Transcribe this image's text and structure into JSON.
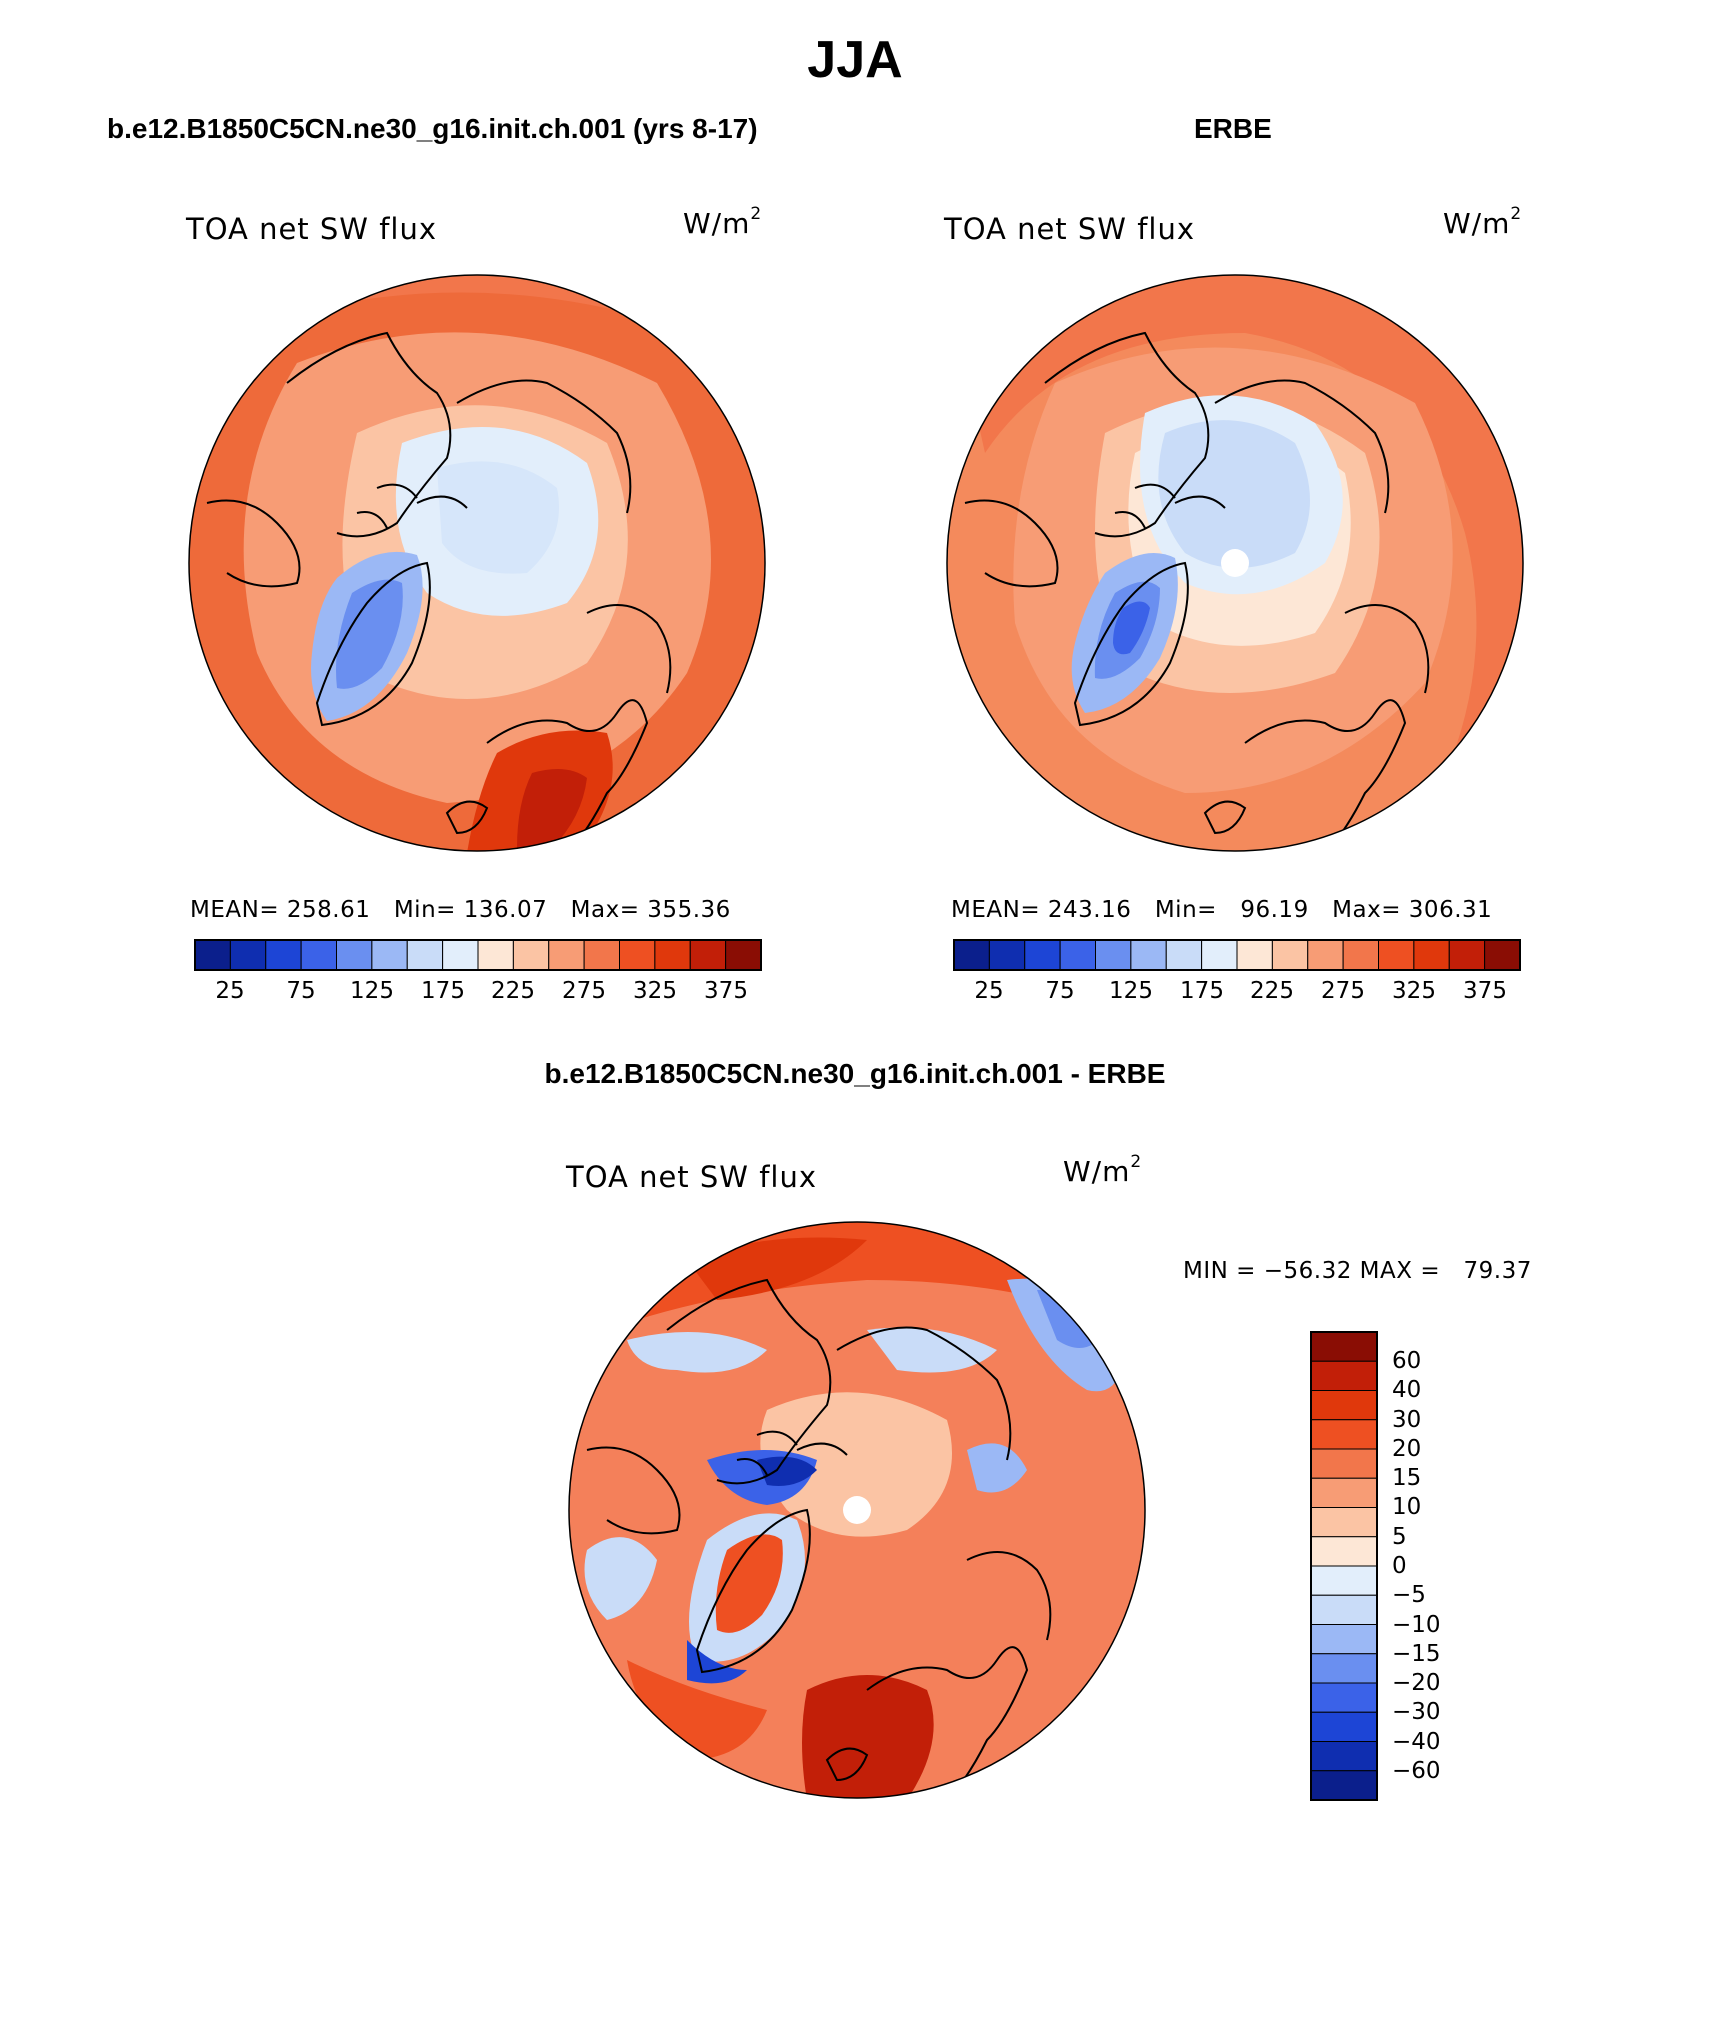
{
  "figure": {
    "season_title": "JJA",
    "panels": [
      {
        "heading": "b.e12.B1850C5CN.ne30_g16.init.ch.001 (yrs 8-17)",
        "variable": "TOA net SW flux",
        "units_base": "W/m",
        "units_exp": "2",
        "stats": {
          "mean": "258.61",
          "min": "136.07",
          "max": "355.36"
        },
        "stats_labels": {
          "mean": "MEAN=",
          "min": "Min=",
          "max": "Max="
        }
      },
      {
        "heading": "ERBE",
        "variable": "TOA net SW flux",
        "units_base": "W/m",
        "units_exp": "2",
        "stats": {
          "mean": "243.16",
          "min": "96.19",
          "max": "306.31"
        },
        "stats_labels": {
          "mean": "MEAN=",
          "min": "Min=",
          "max": "Max="
        }
      },
      {
        "heading": "b.e12.B1850C5CN.ne30_g16.init.ch.001 - ERBE",
        "variable": "TOA net SW flux",
        "units_base": "W/m",
        "units_exp": "2",
        "min_label": "MIN =",
        "min_value": "−56.32",
        "max_label": "MAX =",
        "max_value": "79.37"
      }
    ]
  },
  "colorbars": {
    "absolute": {
      "colors": [
        "#0b1f8c",
        "#0f2eb0",
        "#1d45d6",
        "#3b62e8",
        "#6a8ff0",
        "#9bb8f5",
        "#c9dcf8",
        "#e2eefb",
        "#fde7d6",
        "#fbc4a4",
        "#f79c75",
        "#f2764b",
        "#ee5022",
        "#e0380c",
        "#c21f08",
        "#8a0d04"
      ],
      "tick_labels": [
        "25",
        "75",
        "125",
        "175",
        "225",
        "275",
        "325",
        "375"
      ]
    },
    "difference": {
      "colors": [
        "#0b1f8c",
        "#0f2eb0",
        "#1d45d6",
        "#3b62e8",
        "#6a8ff0",
        "#9bb8f5",
        "#c9dcf8",
        "#e2eefb",
        "#fde7d6",
        "#fbc4a4",
        "#f79c75",
        "#f2764b",
        "#ee5022",
        "#e0380c",
        "#c21f08",
        "#8a0d04"
      ],
      "tick_labels": [
        "60",
        "40",
        "30",
        "20",
        "15",
        "10",
        "5",
        "0",
        "−5",
        "−10",
        "−15",
        "−20",
        "−30",
        "−40",
        "−60"
      ]
    }
  },
  "map_style": {
    "model_base": "#ee6a3a",
    "obs_base": "#f48a5c",
    "diff_base": "#f4805a",
    "missing_pole": "#ffffff",
    "coastline": "#000000"
  }
}
